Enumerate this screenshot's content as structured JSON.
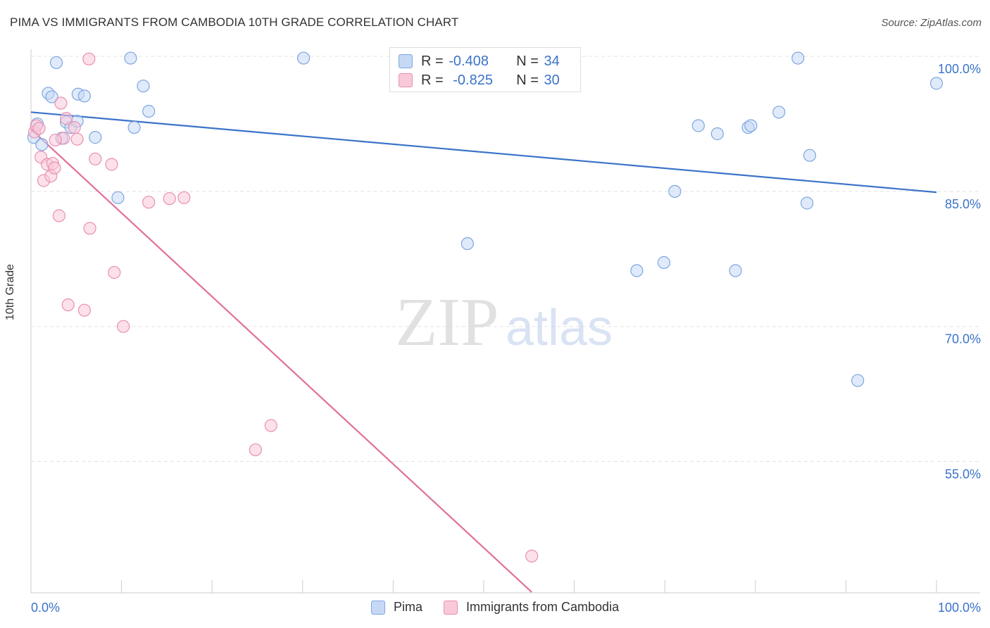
{
  "title": "PIMA VS IMMIGRANTS FROM CAMBODIA 10TH GRADE CORRELATION CHART",
  "source": "Source: ZipAtlas.com",
  "watermark": {
    "zip": "ZIP",
    "atlas": "atlas"
  },
  "legend": {
    "r_label": "R =",
    "n_label": "N =",
    "pima": {
      "r": "-0.408",
      "n": "34"
    },
    "cambodia": {
      "r": "-0.825",
      "n": "30"
    }
  },
  "bottom_legend": {
    "pima": "Pima",
    "cambodia": "Immigrants from Cambodia"
  },
  "chart_data": {
    "type": "scatter",
    "title": "PIMA VS IMMIGRANTS FROM CAMBODIA 10TH GRADE CORRELATION CHART",
    "xlabel": "",
    "ylabel": "10th Grade",
    "xlim": [
      0,
      100
    ],
    "ylim": [
      40.5,
      102
    ],
    "x_tick_labels": {
      "left": "0.0%",
      "right": "100.0%"
    },
    "y_ticks": [
      {
        "value": 100,
        "label": "100.0%"
      },
      {
        "value": 85,
        "label": "85.0%"
      },
      {
        "value": 70,
        "label": "70.0%"
      },
      {
        "value": 55,
        "label": "55.0%"
      }
    ],
    "colors": {
      "pima": "#3a73c9",
      "pima_fill": "#c5d9f6",
      "cambodia": "#e0709a",
      "cambodia_fill": "#f9c9d8"
    },
    "series": [
      {
        "name": "Pima",
        "points": [
          [
            0.3,
            91.0
          ],
          [
            0.7,
            92.5
          ],
          [
            1.2,
            90.2
          ],
          [
            1.9,
            95.9
          ],
          [
            2.3,
            95.5
          ],
          [
            2.8,
            99.3
          ],
          [
            3.4,
            90.9
          ],
          [
            3.9,
            92.7
          ],
          [
            4.4,
            92.1
          ],
          [
            5.2,
            95.8
          ],
          [
            5.9,
            95.6
          ],
          [
            5.1,
            92.8
          ],
          [
            7.1,
            91.0
          ],
          [
            9.6,
            84.3
          ],
          [
            11.0,
            99.8
          ],
          [
            11.4,
            92.1
          ],
          [
            12.4,
            96.7
          ],
          [
            13.0,
            93.9
          ],
          [
            30.1,
            99.8
          ],
          [
            48.2,
            79.2
          ],
          [
            66.9,
            76.2
          ],
          [
            69.9,
            77.1
          ],
          [
            71.1,
            85.0
          ],
          [
            73.7,
            92.3
          ],
          [
            75.8,
            91.4
          ],
          [
            77.8,
            76.2
          ],
          [
            79.2,
            92.1
          ],
          [
            79.5,
            92.3
          ],
          [
            82.6,
            93.8
          ],
          [
            84.7,
            99.8
          ],
          [
            85.7,
            83.7
          ],
          [
            86.0,
            89.0
          ],
          [
            91.3,
            64.0
          ],
          [
            100.0,
            97.0
          ]
        ],
        "trendline": {
          "x": [
            0,
            100
          ],
          "y": [
            93.8,
            84.9
          ]
        }
      },
      {
        "name": "Immigrants from Cambodia",
        "points": [
          [
            0.4,
            91.6
          ],
          [
            0.6,
            92.3
          ],
          [
            0.9,
            92.0
          ],
          [
            1.1,
            88.8
          ],
          [
            1.4,
            86.2
          ],
          [
            1.8,
            88.0
          ],
          [
            2.2,
            86.7
          ],
          [
            2.4,
            88.1
          ],
          [
            2.6,
            87.6
          ],
          [
            3.1,
            82.3
          ],
          [
            3.3,
            94.8
          ],
          [
            3.6,
            90.9
          ],
          [
            3.9,
            93.1
          ],
          [
            2.7,
            90.7
          ],
          [
            4.1,
            72.4
          ],
          [
            4.8,
            92.1
          ],
          [
            5.1,
            90.8
          ],
          [
            5.9,
            71.8
          ],
          [
            6.4,
            99.7
          ],
          [
            6.5,
            80.9
          ],
          [
            7.1,
            88.6
          ],
          [
            8.9,
            88.0
          ],
          [
            9.2,
            76.0
          ],
          [
            10.2,
            70.0
          ],
          [
            13.0,
            83.8
          ],
          [
            15.3,
            84.2
          ],
          [
            16.9,
            84.3
          ],
          [
            24.8,
            56.3
          ],
          [
            26.5,
            59.0
          ],
          [
            55.3,
            44.5
          ]
        ],
        "trendline": {
          "x": [
            0,
            55.3
          ],
          "y": [
            91.9,
            40.5
          ]
        }
      }
    ]
  }
}
